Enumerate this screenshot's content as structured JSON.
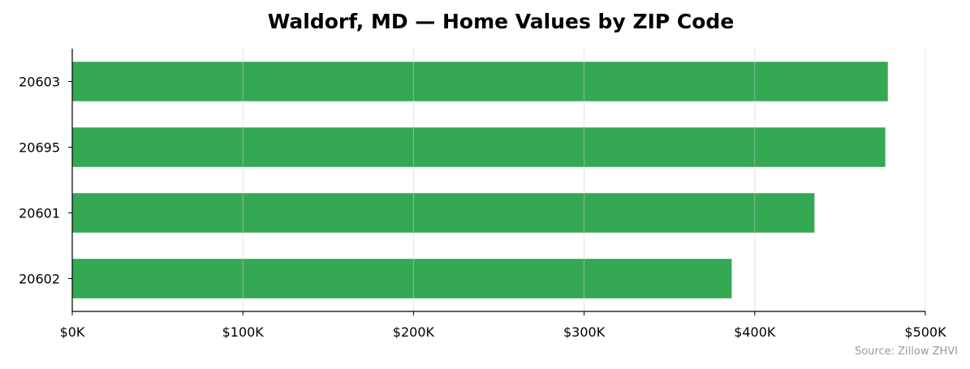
{
  "chart_data": {
    "type": "bar",
    "orientation": "horizontal",
    "title": "Waldorf, MD — Home Values by ZIP Code",
    "xlabel": "",
    "ylabel": "",
    "categories": [
      "20603",
      "20695",
      "20601",
      "20602"
    ],
    "values": [
      478000,
      476500,
      435000,
      386500
    ],
    "xlim": [
      0,
      500000
    ],
    "xticks": [
      0,
      100000,
      200000,
      300000,
      400000,
      500000
    ],
    "xtick_labels": [
      "$0K",
      "$100K",
      "$200K",
      "$300K",
      "$400K",
      "$500K"
    ],
    "grid": "vertical",
    "bar_color": "#34a853",
    "source": "Source: Zillow ZHVI"
  }
}
